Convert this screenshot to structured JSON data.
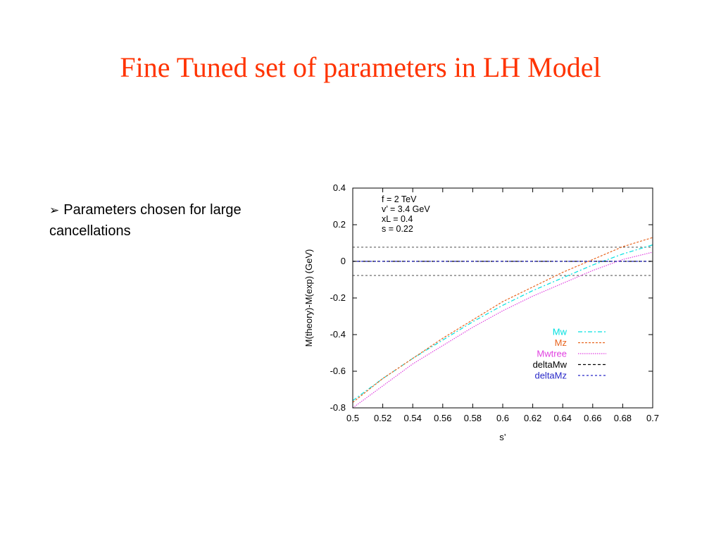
{
  "slide": {
    "title": "Fine Tuned set of parameters in LH Model",
    "bullet": {
      "marker": "➢",
      "text": "Parameters chosen for large cancellations"
    }
  },
  "chart_data": {
    "type": "line",
    "xlabel": "s’",
    "ylabel": "M(theory)-M(exp) (GeV)",
    "xlim": [
      0.5,
      0.7
    ],
    "ylim": [
      -0.8,
      0.4
    ],
    "xticks": [
      "0.5",
      "0.52",
      "0.54",
      "0.56",
      "0.58",
      "0.6",
      "0.62",
      "0.64",
      "0.66",
      "0.68",
      "0.7"
    ],
    "yticks": [
      "0.4",
      "0.2",
      "0",
      "-0.2",
      "-0.4",
      "-0.6",
      "-0.8"
    ],
    "grid": false,
    "legend_position": "bottom-right",
    "annotations": [
      "f = 2 TeV",
      "v’ = 3.4 GeV",
      "xL = 0.4",
      "s = 0.22"
    ],
    "x": [
      0.5,
      0.52,
      0.54,
      0.56,
      0.58,
      0.6,
      0.62,
      0.64,
      0.66,
      0.68,
      0.7
    ],
    "series": [
      {
        "name": "Mw",
        "color": "#00e0e0",
        "dash": "6,3,2,3",
        "values": [
          -0.76,
          -0.64,
          -0.53,
          -0.43,
          -0.33,
          -0.24,
          -0.16,
          -0.09,
          -0.02,
          0.04,
          0.09
        ]
      },
      {
        "name": "Mz",
        "color": "#e8641e",
        "dash": "3,2",
        "values": [
          -0.77,
          -0.64,
          -0.53,
          -0.42,
          -0.32,
          -0.22,
          -0.14,
          -0.06,
          0.01,
          0.08,
          0.13
        ]
      },
      {
        "name": "Mwtree",
        "color": "#e040e0",
        "dash": "1.5,1.5",
        "values": [
          -0.8,
          -0.68,
          -0.56,
          -0.46,
          -0.36,
          -0.27,
          -0.19,
          -0.12,
          -0.05,
          0.01,
          0.05
        ]
      },
      {
        "name": "deltaMw",
        "color": "#000000",
        "dash": "4,3",
        "values": [
          0.0,
          0.0,
          0.0,
          0.0,
          0.0,
          0.0,
          0.0,
          0.0,
          0.0,
          0.0,
          0.0
        ]
      },
      {
        "name": "deltaMz",
        "color": "#2828c8",
        "dash": "3,3",
        "values": [
          0.0,
          0.0,
          0.0,
          0.0,
          0.0,
          0.0,
          0.0,
          0.0,
          0.0,
          0.0,
          0.0
        ]
      }
    ],
    "band_lines": [
      {
        "name": "upper-band",
        "color": "#333333",
        "dash": "3,3",
        "y": 0.077
      },
      {
        "name": "lower-band",
        "color": "#333333",
        "dash": "3,3",
        "y": -0.077
      }
    ]
  }
}
